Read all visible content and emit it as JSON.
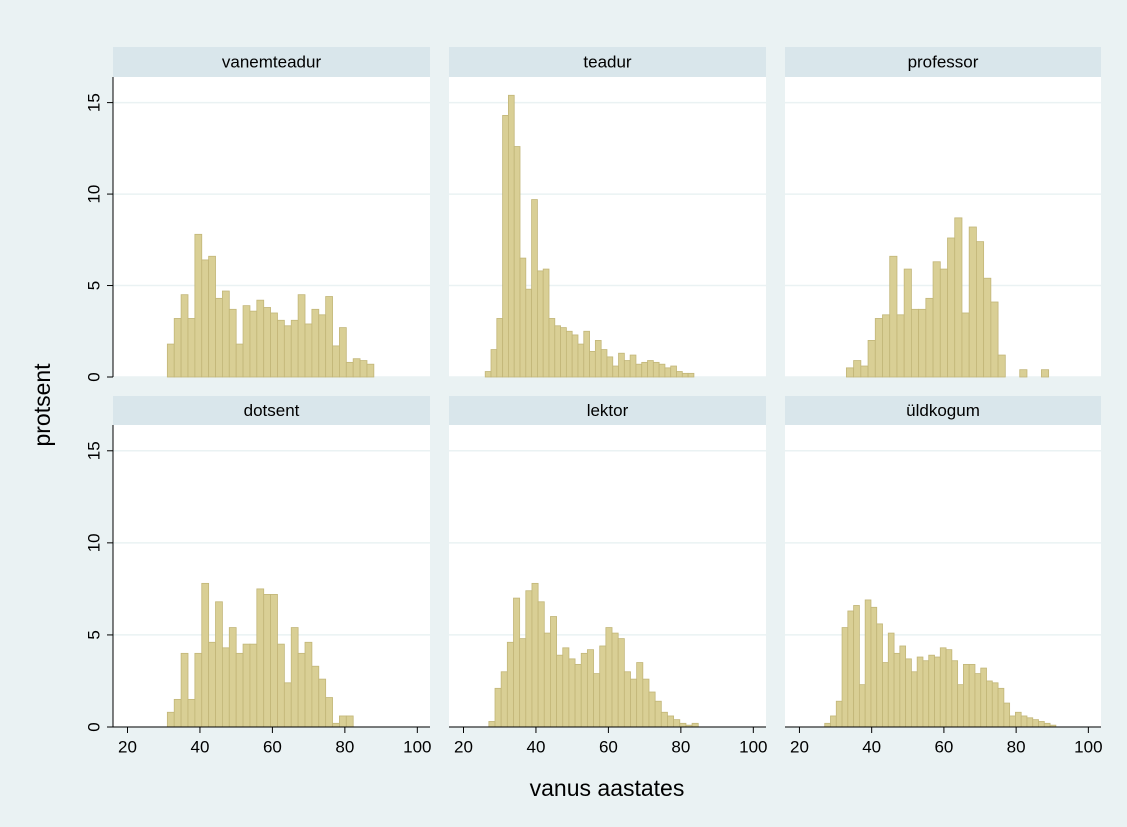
{
  "chart_data": {
    "type": "histogram",
    "xlabel": "vanus aastates",
    "ylabel": "protsent",
    "xlim": [
      16,
      103.5
    ],
    "xticks": [
      20,
      40,
      60,
      80,
      100
    ],
    "ylim": [
      0,
      16.4
    ],
    "yticks": [
      0,
      5,
      10,
      15
    ],
    "grid": true,
    "color": "#d9cf95",
    "panels": [
      {
        "title": "vanemteadur",
        "bins": [
          31.0,
          32.9,
          34.8,
          36.7,
          38.6,
          40.5,
          42.4,
          44.3,
          46.2,
          48.1,
          50.0,
          51.9,
          53.8,
          55.7,
          57.6,
          59.5,
          61.4,
          63.3,
          65.2,
          67.1,
          69.0,
          70.9,
          72.8,
          74.7,
          76.6,
          78.5,
          80.4,
          82.3,
          84.2,
          86.1,
          88.0
        ],
        "values": [
          1.8,
          3.2,
          4.5,
          3.2,
          7.8,
          6.4,
          6.6,
          4.3,
          4.7,
          3.7,
          1.8,
          3.9,
          3.6,
          4.2,
          3.8,
          3.5,
          3.1,
          2.8,
          3.1,
          4.5,
          2.9,
          3.7,
          3.4,
          4.4,
          1.7,
          2.7,
          0.8,
          1.0,
          0.9,
          0.7
        ]
      },
      {
        "title": "teadur",
        "bins": [
          26,
          27.6,
          29.2,
          30.8,
          32.4,
          34,
          35.6,
          37.2,
          38.8,
          40.4,
          42,
          43.6,
          45.2,
          46.8,
          48.4,
          50,
          51.6,
          53.2,
          54.8,
          56.4,
          58,
          59.6,
          61.2,
          62.8,
          64.4,
          66,
          67.6,
          69.2,
          70.8,
          72.4,
          74,
          75.6,
          77.2,
          78.8,
          80.4,
          82,
          83.6
        ],
        "values": [
          0.3,
          1.5,
          3.2,
          14.3,
          15.4,
          12.6,
          6.5,
          4.8,
          9.7,
          5.8,
          5.9,
          3.2,
          2.8,
          2.7,
          2.5,
          2.3,
          1.8,
          2.5,
          1.4,
          2.0,
          1.5,
          1.1,
          0.6,
          1.3,
          0.9,
          1.2,
          0.7,
          0.8,
          0.9,
          0.8,
          0.7,
          0.5,
          0.6,
          0.3,
          0.2,
          0.2
        ]
      },
      {
        "title": "professor",
        "bins": [
          33,
          35,
          37,
          39,
          41,
          43,
          45,
          47,
          49,
          51,
          53,
          55,
          57,
          59,
          61,
          63,
          65,
          67,
          69,
          71,
          73,
          75,
          77,
          79,
          81,
          83,
          85,
          87,
          89
        ],
        "values": [
          0.5,
          0.9,
          0.6,
          2.0,
          3.2,
          3.4,
          6.6,
          3.4,
          5.9,
          3.7,
          3.7,
          4.3,
          6.3,
          5.9,
          7.6,
          8.7,
          3.5,
          8.2,
          7.4,
          5.4,
          4.1,
          1.2,
          0,
          0,
          0.4,
          0,
          0,
          0.4
        ]
      },
      {
        "title": "dotsent",
        "bins": [
          31.0,
          32.9,
          34.8,
          36.7,
          38.6,
          40.5,
          42.4,
          44.3,
          46.2,
          48.1,
          50.0,
          51.9,
          53.8,
          55.7,
          57.6,
          59.5,
          61.4,
          63.3,
          65.2,
          67.1,
          69.0,
          70.9,
          72.8,
          74.7,
          76.6,
          78.5,
          80.4,
          82.3
        ],
        "values": [
          0.8,
          1.5,
          4.0,
          1.5,
          4.0,
          7.8,
          4.6,
          6.8,
          4.3,
          5.4,
          4.0,
          4.5,
          4.5,
          7.5,
          7.2,
          7.2,
          4.5,
          2.4,
          5.4,
          4.0,
          4.6,
          3.3,
          2.6,
          1.6,
          0.2,
          0.6,
          0.6
        ]
      },
      {
        "title": "lektor",
        "bins": [
          27.0,
          28.7,
          30.4,
          32.1,
          33.8,
          35.5,
          37.2,
          38.9,
          40.6,
          42.3,
          44.0,
          45.7,
          47.4,
          49.1,
          50.8,
          52.5,
          54.2,
          55.9,
          57.6,
          59.3,
          61.0,
          62.7,
          64.4,
          66.1,
          67.8,
          69.5,
          71.2,
          72.9,
          74.6,
          76.3,
          78.0,
          79.7,
          81.4,
          83.1,
          84.8
        ],
        "values": [
          0.3,
          2.1,
          3.0,
          4.6,
          7.0,
          4.8,
          7.4,
          7.8,
          6.8,
          5.1,
          6.0,
          3.9,
          4.3,
          3.7,
          3.4,
          4.0,
          4.2,
          2.9,
          4.4,
          5.4,
          5.1,
          4.8,
          3.0,
          2.6,
          3.5,
          2.6,
          1.9,
          1.4,
          0.8,
          0.6,
          0.4,
          0.2,
          0.1,
          0.2
        ]
      },
      {
        "title": "üldkogum",
        "bins": [
          27,
          28.6,
          30.2,
          31.8,
          33.4,
          35,
          36.6,
          38.2,
          39.8,
          41.4,
          43,
          44.6,
          46.2,
          47.8,
          49.4,
          51,
          52.6,
          54.2,
          55.8,
          57.4,
          59,
          60.6,
          62.2,
          63.8,
          65.4,
          67,
          68.6,
          70.2,
          71.8,
          73.4,
          75,
          76.6,
          78.2,
          79.8,
          81.4,
          83,
          84.6,
          86.2,
          87.8,
          89.4,
          91
        ],
        "values": [
          0.2,
          0.6,
          1.4,
          5.4,
          6.3,
          6.6,
          2.3,
          6.9,
          6.5,
          5.6,
          3.5,
          5.1,
          4.0,
          4.4,
          3.7,
          3.0,
          3.8,
          3.6,
          3.9,
          3.8,
          4.3,
          4.2,
          3.6,
          2.3,
          3.4,
          3.4,
          2.9,
          3.2,
          2.5,
          2.4,
          2.1,
          1.3,
          0.6,
          0.8,
          0.6,
          0.5,
          0.4,
          0.3,
          0.2,
          0.1
        ]
      }
    ]
  }
}
